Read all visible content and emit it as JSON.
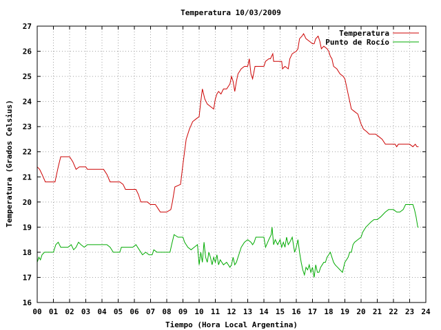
{
  "chart_data": {
    "type": "line",
    "title": "Temperatura 10/03/2009",
    "xlabel": "Tiempo (Hora Local Argentina)",
    "ylabel": "Temperatura (Grados Celsius)",
    "xlim": [
      0,
      24
    ],
    "ylim": [
      16,
      27
    ],
    "x_ticks": [
      "00",
      "01",
      "02",
      "03",
      "04",
      "05",
      "06",
      "07",
      "08",
      "09",
      "10",
      "11",
      "12",
      "13",
      "14",
      "15",
      "16",
      "17",
      "18",
      "19",
      "20",
      "21",
      "22",
      "23",
      "24"
    ],
    "y_ticks": [
      "16",
      "17",
      "18",
      "19",
      "20",
      "21",
      "22",
      "23",
      "24",
      "25",
      "26",
      "27"
    ],
    "grid": true,
    "legend_position": "top-right",
    "series": [
      {
        "name": "Temperatura",
        "color": "#cc0000",
        "points": [
          [
            0.0,
            21.4
          ],
          [
            0.15,
            21.3
          ],
          [
            0.3,
            21.1
          ],
          [
            0.5,
            20.8
          ],
          [
            0.75,
            20.8
          ],
          [
            1.1,
            20.8
          ],
          [
            1.3,
            21.4
          ],
          [
            1.45,
            21.8
          ],
          [
            1.7,
            21.8
          ],
          [
            2.0,
            21.8
          ],
          [
            2.2,
            21.6
          ],
          [
            2.4,
            21.3
          ],
          [
            2.6,
            21.4
          ],
          [
            3.0,
            21.4
          ],
          [
            3.1,
            21.3
          ],
          [
            3.5,
            21.3
          ],
          [
            4.0,
            21.3
          ],
          [
            4.1,
            21.3
          ],
          [
            4.3,
            21.1
          ],
          [
            4.5,
            20.8
          ],
          [
            4.8,
            20.8
          ],
          [
            5.1,
            20.8
          ],
          [
            5.3,
            20.7
          ],
          [
            5.45,
            20.5
          ],
          [
            5.8,
            20.5
          ],
          [
            6.1,
            20.5
          ],
          [
            6.25,
            20.3
          ],
          [
            6.4,
            20.0
          ],
          [
            6.8,
            20.0
          ],
          [
            7.0,
            19.9
          ],
          [
            7.3,
            19.9
          ],
          [
            7.5,
            19.7
          ],
          [
            7.6,
            19.6
          ],
          [
            8.0,
            19.6
          ],
          [
            8.25,
            19.7
          ],
          [
            8.35,
            20.0
          ],
          [
            8.5,
            20.6
          ],
          [
            8.85,
            20.7
          ],
          [
            9.0,
            21.5
          ],
          [
            9.2,
            22.5
          ],
          [
            9.4,
            22.9
          ],
          [
            9.6,
            23.2
          ],
          [
            9.8,
            23.3
          ],
          [
            10.0,
            23.4
          ],
          [
            10.1,
            24.0
          ],
          [
            10.2,
            24.5
          ],
          [
            10.35,
            24.1
          ],
          [
            10.5,
            23.9
          ],
          [
            10.7,
            23.8
          ],
          [
            10.9,
            23.7
          ],
          [
            11.0,
            24.1
          ],
          [
            11.1,
            24.3
          ],
          [
            11.2,
            24.4
          ],
          [
            11.35,
            24.3
          ],
          [
            11.5,
            24.5
          ],
          [
            11.7,
            24.5
          ],
          [
            11.9,
            24.7
          ],
          [
            12.0,
            25.0
          ],
          [
            12.1,
            24.8
          ],
          [
            12.2,
            24.4
          ],
          [
            12.3,
            24.8
          ],
          [
            12.4,
            25.1
          ],
          [
            12.6,
            25.3
          ],
          [
            12.8,
            25.4
          ],
          [
            13.0,
            25.4
          ],
          [
            13.1,
            25.7
          ],
          [
            13.2,
            25.1
          ],
          [
            13.3,
            24.9
          ],
          [
            13.45,
            25.4
          ],
          [
            13.7,
            25.4
          ],
          [
            14.0,
            25.4
          ],
          [
            14.1,
            25.6
          ],
          [
            14.3,
            25.7
          ],
          [
            14.4,
            25.7
          ],
          [
            14.55,
            25.9
          ],
          [
            14.6,
            25.6
          ],
          [
            14.8,
            25.6
          ],
          [
            15.0,
            25.6
          ],
          [
            15.1,
            25.6
          ],
          [
            15.15,
            25.3
          ],
          [
            15.3,
            25.4
          ],
          [
            15.5,
            25.3
          ],
          [
            15.6,
            25.7
          ],
          [
            15.75,
            25.9
          ],
          [
            16.0,
            26.0
          ],
          [
            16.1,
            26.1
          ],
          [
            16.2,
            26.5
          ],
          [
            16.35,
            26.6
          ],
          [
            16.45,
            26.7
          ],
          [
            16.6,
            26.5
          ],
          [
            16.8,
            26.4
          ],
          [
            17.0,
            26.3
          ],
          [
            17.1,
            26.3
          ],
          [
            17.2,
            26.5
          ],
          [
            17.35,
            26.6
          ],
          [
            17.45,
            26.4
          ],
          [
            17.55,
            26.1
          ],
          [
            17.7,
            26.2
          ],
          [
            17.9,
            26.1
          ],
          [
            18.0,
            26.0
          ],
          [
            18.1,
            25.8
          ],
          [
            18.2,
            25.7
          ],
          [
            18.3,
            25.4
          ],
          [
            18.5,
            25.3
          ],
          [
            18.7,
            25.1
          ],
          [
            18.9,
            25.0
          ],
          [
            19.0,
            24.9
          ],
          [
            19.1,
            24.6
          ],
          [
            19.2,
            24.3
          ],
          [
            19.3,
            24.0
          ],
          [
            19.4,
            23.7
          ],
          [
            19.6,
            23.6
          ],
          [
            19.8,
            23.5
          ],
          [
            19.9,
            23.3
          ],
          [
            20.0,
            23.1
          ],
          [
            20.15,
            22.9
          ],
          [
            20.35,
            22.8
          ],
          [
            20.5,
            22.7
          ],
          [
            20.7,
            22.7
          ],
          [
            20.9,
            22.7
          ],
          [
            21.1,
            22.6
          ],
          [
            21.3,
            22.5
          ],
          [
            21.5,
            22.3
          ],
          [
            21.8,
            22.3
          ],
          [
            22.1,
            22.3
          ],
          [
            22.2,
            22.2
          ],
          [
            22.3,
            22.3
          ],
          [
            22.6,
            22.3
          ],
          [
            23.0,
            22.3
          ],
          [
            23.2,
            22.2
          ],
          [
            23.35,
            22.3
          ],
          [
            23.45,
            22.2
          ],
          [
            23.55,
            22.2
          ]
        ]
      },
      {
        "name": "Punto de Rocío",
        "color": "#00aa00",
        "points": [
          [
            0.0,
            17.6
          ],
          [
            0.1,
            17.8
          ],
          [
            0.2,
            17.7
          ],
          [
            0.3,
            17.9
          ],
          [
            0.45,
            18.0
          ],
          [
            0.7,
            18.0
          ],
          [
            1.0,
            18.0
          ],
          [
            1.15,
            18.3
          ],
          [
            1.3,
            18.4
          ],
          [
            1.45,
            18.2
          ],
          [
            1.7,
            18.2
          ],
          [
            1.9,
            18.2
          ],
          [
            2.1,
            18.3
          ],
          [
            2.25,
            18.1
          ],
          [
            2.4,
            18.2
          ],
          [
            2.55,
            18.4
          ],
          [
            2.7,
            18.3
          ],
          [
            2.9,
            18.2
          ],
          [
            3.1,
            18.3
          ],
          [
            3.5,
            18.3
          ],
          [
            4.0,
            18.3
          ],
          [
            4.3,
            18.3
          ],
          [
            4.5,
            18.2
          ],
          [
            4.7,
            18.0
          ],
          [
            4.9,
            18.0
          ],
          [
            5.1,
            18.0
          ],
          [
            5.2,
            18.2
          ],
          [
            5.5,
            18.2
          ],
          [
            5.9,
            18.2
          ],
          [
            6.1,
            18.3
          ],
          [
            6.3,
            18.1
          ],
          [
            6.5,
            17.9
          ],
          [
            6.7,
            18.0
          ],
          [
            6.9,
            17.9
          ],
          [
            7.1,
            17.9
          ],
          [
            7.2,
            18.1
          ],
          [
            7.4,
            18.0
          ],
          [
            7.6,
            18.0
          ],
          [
            8.0,
            18.0
          ],
          [
            8.2,
            18.0
          ],
          [
            8.3,
            18.3
          ],
          [
            8.45,
            18.7
          ],
          [
            8.7,
            18.6
          ],
          [
            9.0,
            18.6
          ],
          [
            9.1,
            18.4
          ],
          [
            9.3,
            18.2
          ],
          [
            9.5,
            18.1
          ],
          [
            9.7,
            18.2
          ],
          [
            9.9,
            18.3
          ],
          [
            10.0,
            17.5
          ],
          [
            10.1,
            18.0
          ],
          [
            10.2,
            17.6
          ],
          [
            10.3,
            18.4
          ],
          [
            10.4,
            17.8
          ],
          [
            10.5,
            17.6
          ],
          [
            10.6,
            18.0
          ],
          [
            10.7,
            17.8
          ],
          [
            10.8,
            17.5
          ],
          [
            10.9,
            17.8
          ],
          [
            11.0,
            17.6
          ],
          [
            11.1,
            17.9
          ],
          [
            11.2,
            17.5
          ],
          [
            11.3,
            17.7
          ],
          [
            11.5,
            17.5
          ],
          [
            11.7,
            17.6
          ],
          [
            11.9,
            17.4
          ],
          [
            12.0,
            17.5
          ],
          [
            12.1,
            17.8
          ],
          [
            12.2,
            17.5
          ],
          [
            12.3,
            17.6
          ],
          [
            12.4,
            17.8
          ],
          [
            12.5,
            18.0
          ],
          [
            12.6,
            18.2
          ],
          [
            12.8,
            18.4
          ],
          [
            13.0,
            18.5
          ],
          [
            13.2,
            18.4
          ],
          [
            13.3,
            18.3
          ],
          [
            13.4,
            18.4
          ],
          [
            13.5,
            18.6
          ],
          [
            13.7,
            18.6
          ],
          [
            14.0,
            18.6
          ],
          [
            14.1,
            18.2
          ],
          [
            14.3,
            18.5
          ],
          [
            14.45,
            18.7
          ],
          [
            14.5,
            19.0
          ],
          [
            14.6,
            18.3
          ],
          [
            14.7,
            18.5
          ],
          [
            14.85,
            18.3
          ],
          [
            15.0,
            18.5
          ],
          [
            15.1,
            18.2
          ],
          [
            15.2,
            18.4
          ],
          [
            15.3,
            18.2
          ],
          [
            15.4,
            18.6
          ],
          [
            15.5,
            18.3
          ],
          [
            15.6,
            18.4
          ],
          [
            15.75,
            18.6
          ],
          [
            15.9,
            18.0
          ],
          [
            16.0,
            18.2
          ],
          [
            16.1,
            18.5
          ],
          [
            16.2,
            18.0
          ],
          [
            16.3,
            17.6
          ],
          [
            16.4,
            17.3
          ],
          [
            16.5,
            17.1
          ],
          [
            16.6,
            17.4
          ],
          [
            16.7,
            17.3
          ],
          [
            16.8,
            17.5
          ],
          [
            16.9,
            17.2
          ],
          [
            17.0,
            17.4
          ],
          [
            17.1,
            17.0
          ],
          [
            17.2,
            17.5
          ],
          [
            17.3,
            17.2
          ],
          [
            17.4,
            17.2
          ],
          [
            17.5,
            17.4
          ],
          [
            17.6,
            17.5
          ],
          [
            17.7,
            17.6
          ],
          [
            17.8,
            17.6
          ],
          [
            17.9,
            17.8
          ],
          [
            18.0,
            17.9
          ],
          [
            18.1,
            18.0
          ],
          [
            18.2,
            17.8
          ],
          [
            18.3,
            17.6
          ],
          [
            18.4,
            17.5
          ],
          [
            18.55,
            17.4
          ],
          [
            18.7,
            17.3
          ],
          [
            18.85,
            17.2
          ],
          [
            19.0,
            17.6
          ],
          [
            19.1,
            17.7
          ],
          [
            19.2,
            17.8
          ],
          [
            19.3,
            18.0
          ],
          [
            19.4,
            18.0
          ],
          [
            19.5,
            18.3
          ],
          [
            19.6,
            18.4
          ],
          [
            19.8,
            18.5
          ],
          [
            20.0,
            18.6
          ],
          [
            20.1,
            18.8
          ],
          [
            20.2,
            18.9
          ],
          [
            20.3,
            19.0
          ],
          [
            20.45,
            19.1
          ],
          [
            20.6,
            19.2
          ],
          [
            20.8,
            19.3
          ],
          [
            21.0,
            19.3
          ],
          [
            21.2,
            19.4
          ],
          [
            21.35,
            19.5
          ],
          [
            21.5,
            19.6
          ],
          [
            21.7,
            19.7
          ],
          [
            22.0,
            19.7
          ],
          [
            22.2,
            19.6
          ],
          [
            22.4,
            19.6
          ],
          [
            22.6,
            19.7
          ],
          [
            22.75,
            19.9
          ],
          [
            23.0,
            19.9
          ],
          [
            23.2,
            19.9
          ],
          [
            23.3,
            19.7
          ],
          [
            23.4,
            19.4
          ],
          [
            23.5,
            19.0
          ],
          [
            23.55,
            19.0
          ]
        ]
      }
    ]
  }
}
